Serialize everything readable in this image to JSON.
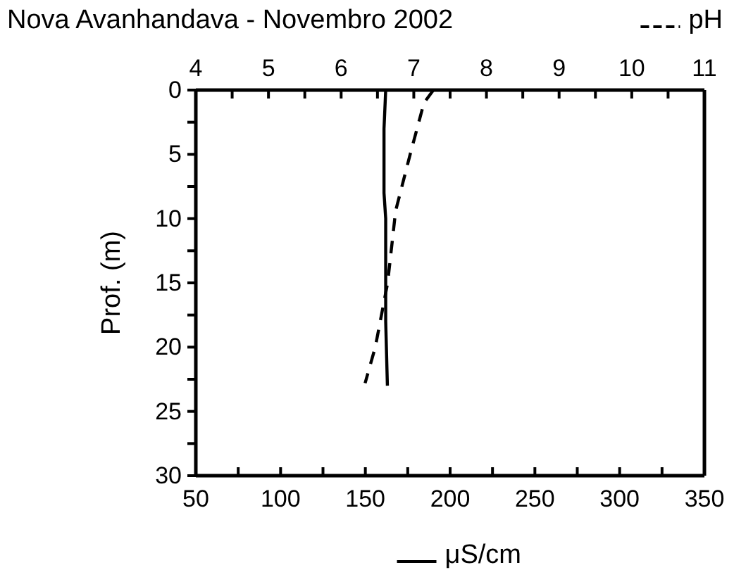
{
  "chart_data": {
    "type": "line",
    "title": "Nova Avanhandava - Novembro 2002",
    "xlabel": "μS/cm",
    "x2label": "pH",
    "ylabel": "Prof. (m)",
    "xlim": [
      50,
      350
    ],
    "xticks": [
      50,
      {
        "value": 75,
        "label": null
      },
      100,
      {
        "value": 125,
        "label": null
      },
      150,
      {
        "value": 175,
        "label": null
      },
      200,
      {
        "value": 225,
        "label": null
      },
      250,
      {
        "value": 275,
        "label": null
      },
      300,
      {
        "value": 325,
        "label": null
      },
      350
    ],
    "x2lim": [
      4,
      11
    ],
    "x2ticks": [
      4,
      {
        "value": 4.5,
        "label": null
      },
      5,
      {
        "value": 5.5,
        "label": null
      },
      6,
      {
        "value": 6.5,
        "label": null
      },
      7,
      {
        "value": 7.5,
        "label": null
      },
      8,
      {
        "value": 8.5,
        "label": null
      },
      9,
      {
        "value": 9.5,
        "label": null
      },
      10,
      {
        "value": 10.5,
        "label": null
      },
      11
    ],
    "ylim": [
      30,
      0
    ],
    "yticks": [
      0,
      {
        "value": 2.5,
        "label": null
      },
      5,
      {
        "value": 7.5,
        "label": null
      },
      10,
      {
        "value": 12.5,
        "label": null
      },
      15,
      {
        "value": 17.5,
        "label": null
      },
      20,
      {
        "value": 22.5,
        "label": null
      },
      25,
      {
        "value": 27.5,
        "label": null
      },
      30
    ],
    "grid": false,
    "series": [
      {
        "color": "#000000",
        "line_style": "solid",
        "x": [
          162,
          161,
          161,
          162,
          162,
          163
        ],
        "values": [
          0,
          3,
          8,
          10,
          18,
          23
        ]
      },
      {
        "color": "#000000",
        "line_style": "dashed",
        "axis": "x2",
        "x": [
          7.27,
          7.14,
          6.95,
          6.75,
          6.64,
          6.47,
          6.33
        ],
        "values": [
          0,
          1,
          5,
          9.4,
          15,
          20,
          22.8
        ]
      }
    ]
  }
}
